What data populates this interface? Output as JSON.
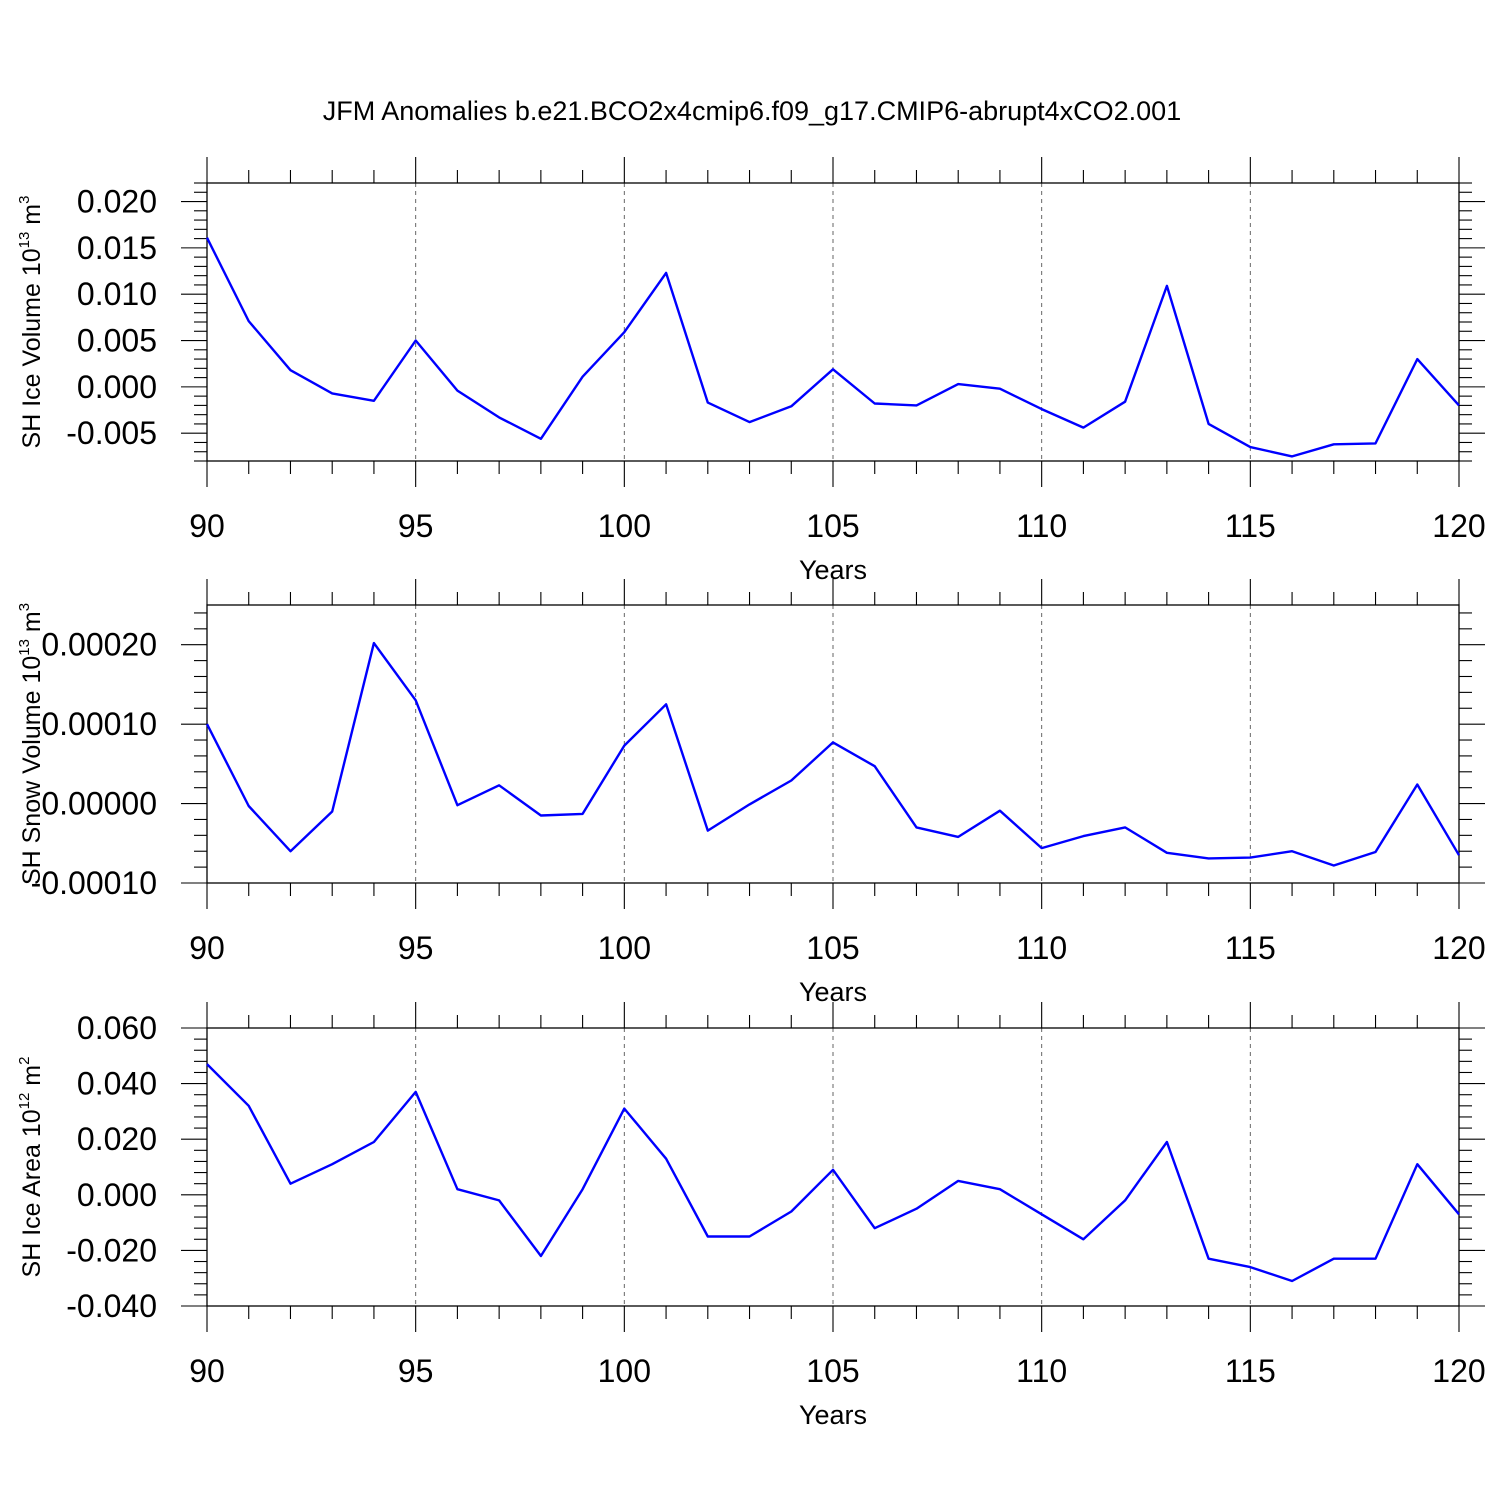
{
  "figure_title": "JFM Anomalies b.e21.BCO2x4cmip6.f09_g17.CMIP6-abrupt4xCO2.001",
  "colors": {
    "line": "#0000ff",
    "axis": "#000000",
    "grid": "#666666",
    "background": "#ffffff"
  },
  "chart_data": [
    {
      "type": "line",
      "title": "",
      "xlabel": "Years",
      "ylabel": {
        "prefix": "SH Ice Volume 10",
        "exp1": "13",
        "unit": " m",
        "exp2": "3"
      },
      "xlim": [
        90,
        120
      ],
      "ylim": [
        -0.008,
        0.022
      ],
      "xticks": [
        90,
        95,
        100,
        105,
        110,
        115,
        120
      ],
      "xtick_labels": [
        "90",
        "95",
        "100",
        "105",
        "110",
        "115",
        "120"
      ],
      "yticks": [
        0.02,
        0.015,
        0.01,
        0.005,
        0.0,
        -0.005
      ],
      "ytick_labels": [
        "0.020",
        "0.015",
        "0.010",
        "0.005",
        "0.000",
        "-0.005"
      ],
      "grid": "dashed vertical at major x ticks",
      "series": [
        {
          "name": "SH Ice Volume",
          "x": [
            90,
            91,
            92,
            93,
            94,
            95,
            96,
            97,
            98,
            99,
            100,
            101,
            102,
            103,
            104,
            105,
            106,
            107,
            108,
            109,
            110,
            111,
            112,
            113,
            114,
            115,
            116,
            117,
            118,
            119,
            120
          ],
          "values": [
            0.0161,
            0.0071,
            0.0018,
            -0.0007,
            -0.0015,
            0.005,
            -0.0004,
            -0.0033,
            -0.0056,
            0.0011,
            0.0059,
            0.0123,
            -0.0017,
            -0.0038,
            -0.0021,
            0.0019,
            -0.0018,
            -0.002,
            0.0003,
            -0.0002,
            -0.0024,
            -0.0044,
            -0.0016,
            0.0109,
            -0.004,
            -0.0065,
            -0.0075,
            -0.0062,
            -0.0061,
            0.003,
            -0.002
          ]
        }
      ]
    },
    {
      "type": "line",
      "title": "",
      "xlabel": "Years",
      "ylabel": {
        "prefix": "SH Snow Volume 10",
        "exp1": "13",
        "unit": " m",
        "exp2": "3"
      },
      "xlim": [
        90,
        120
      ],
      "ylim": [
        -0.0001,
        0.00025
      ],
      "xticks": [
        90,
        95,
        100,
        105,
        110,
        115,
        120
      ],
      "xtick_labels": [
        "90",
        "95",
        "100",
        "105",
        "110",
        "115",
        "120"
      ],
      "yticks": [
        0.0002,
        0.0001,
        0.0,
        -0.0001
      ],
      "ytick_labels": [
        "0.00020",
        "0.00010",
        "0.00000",
        "-0.00010"
      ],
      "grid": "dashed vertical at major x ticks",
      "series": [
        {
          "name": "SH Snow Volume",
          "x": [
            90,
            91,
            92,
            93,
            94,
            95,
            96,
            97,
            98,
            99,
            100,
            101,
            102,
            103,
            104,
            105,
            106,
            107,
            108,
            109,
            110,
            111,
            112,
            113,
            114,
            115,
            116,
            117,
            118,
            119,
            120
          ],
          "values": [
            0.0001,
            -3e-06,
            -6e-05,
            -1e-05,
            0.000202,
            0.00013,
            -2e-06,
            2.3e-05,
            -1.5e-05,
            -1.3e-05,
            7.3e-05,
            0.000125,
            -3.4e-05,
            -1e-06,
            2.9e-05,
            7.7e-05,
            4.7e-05,
            -3e-05,
            -4.2e-05,
            -9e-06,
            -5.6e-05,
            -4.1e-05,
            -3e-05,
            -6.2e-05,
            -6.9e-05,
            -6.8e-05,
            -6e-05,
            -7.8e-05,
            -6.1e-05,
            2.4e-05,
            -6.5e-05
          ]
        }
      ]
    },
    {
      "type": "line",
      "title": "",
      "xlabel": "Years",
      "ylabel": {
        "prefix": "SH Ice Area 10",
        "exp1": "12",
        "unit": " m",
        "exp2": "2"
      },
      "xlim": [
        90,
        120
      ],
      "ylim": [
        -0.04,
        0.06
      ],
      "xticks": [
        90,
        95,
        100,
        105,
        110,
        115,
        120
      ],
      "xtick_labels": [
        "90",
        "95",
        "100",
        "105",
        "110",
        "115",
        "120"
      ],
      "yticks": [
        0.06,
        0.04,
        0.02,
        0.0,
        -0.02,
        -0.04
      ],
      "ytick_labels": [
        "0.060",
        "0.040",
        "0.020",
        "0.000",
        "-0.020",
        "-0.040"
      ],
      "grid": "dashed vertical at major x ticks",
      "series": [
        {
          "name": "SH Ice Area",
          "x": [
            90,
            91,
            92,
            93,
            94,
            95,
            96,
            97,
            98,
            99,
            100,
            101,
            102,
            103,
            104,
            105,
            106,
            107,
            108,
            109,
            110,
            111,
            112,
            113,
            114,
            115,
            116,
            117,
            118,
            119,
            120
          ],
          "values": [
            0.047,
            0.032,
            0.004,
            0.011,
            0.019,
            0.037,
            0.002,
            -0.002,
            -0.022,
            0.002,
            0.031,
            0.013,
            -0.015,
            -0.015,
            -0.006,
            0.009,
            -0.012,
            -0.005,
            0.005,
            0.002,
            -0.007,
            -0.016,
            -0.002,
            0.019,
            -0.023,
            -0.026,
            -0.031,
            -0.023,
            -0.023,
            0.011,
            -0.007
          ]
        }
      ]
    }
  ]
}
